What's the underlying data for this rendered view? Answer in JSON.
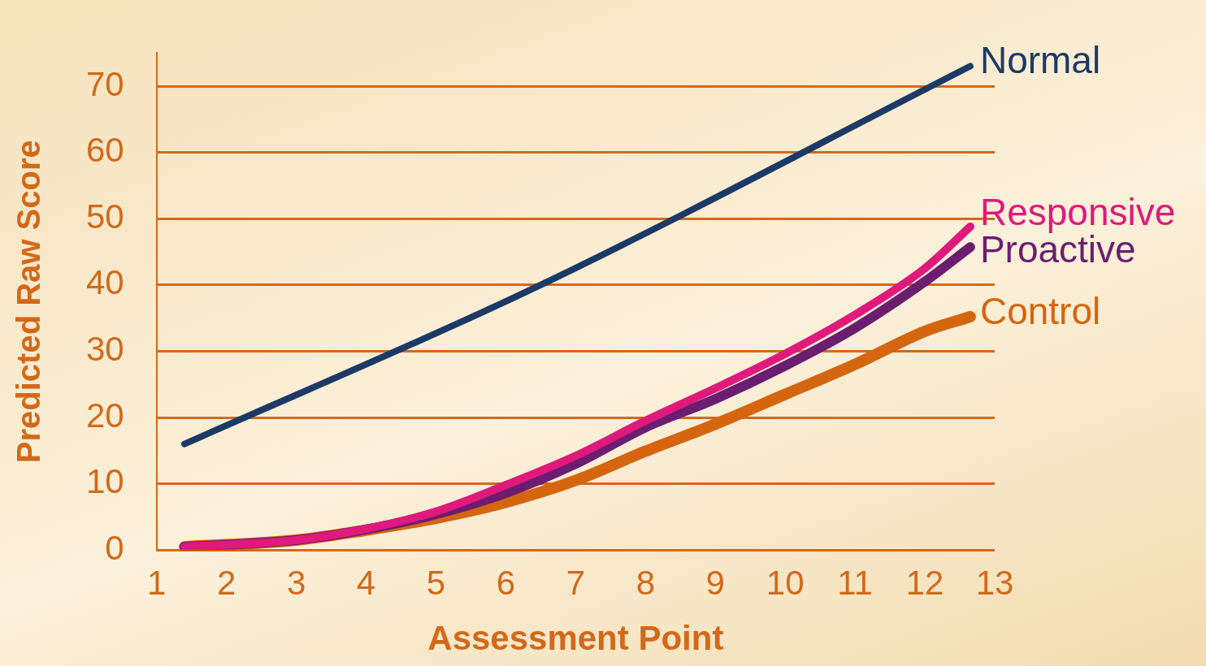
{
  "chart_data": {
    "type": "line",
    "xlabel": "Assessment Point",
    "ylabel": "Predicted Raw Score",
    "xlim": [
      1,
      13
    ],
    "xticks": [
      1,
      2,
      3,
      4,
      5,
      6,
      7,
      8,
      9,
      10,
      11,
      12,
      13
    ],
    "ylim": [
      0,
      75
    ],
    "yticks": [
      0,
      10,
      20,
      30,
      40,
      50,
      60,
      70
    ],
    "grid": "y",
    "legend": false,
    "marker": "none",
    "line_style": "solid",
    "series": [
      {
        "name": "Normal",
        "color": "#1c3a66",
        "x": [
          1.4,
          6.4,
          12.65
        ],
        "values": [
          16,
          39.5,
          73
        ]
      },
      {
        "name": "Responsive",
        "color": "#e0197c",
        "x": [
          1.4,
          3,
          4,
          5,
          6,
          7,
          8,
          9,
          10,
          11,
          12,
          12.65
        ],
        "values": [
          0.5,
          1.5,
          3.2,
          5.8,
          9.8,
          14.2,
          19.5,
          24.4,
          29.6,
          35.5,
          42.5,
          48.8
        ]
      },
      {
        "name": "Proactive",
        "color": "#6b1d70",
        "x": [
          1.4,
          3,
          4,
          5,
          6,
          7,
          8,
          9,
          10,
          11,
          12,
          12.65
        ],
        "values": [
          0.5,
          1.5,
          3.1,
          5.4,
          8.6,
          13,
          18.5,
          22.8,
          27.8,
          33.5,
          40.5,
          45.7
        ]
      },
      {
        "name": "Control",
        "color": "#d6650f",
        "x": [
          1.4,
          3,
          4,
          5,
          6,
          7,
          8,
          9,
          10,
          11,
          12,
          12.65
        ],
        "values": [
          0.5,
          1.5,
          3,
          4.8,
          7.2,
          10.5,
          14.9,
          19,
          23.5,
          28,
          33,
          35.2
        ]
      }
    ]
  }
}
